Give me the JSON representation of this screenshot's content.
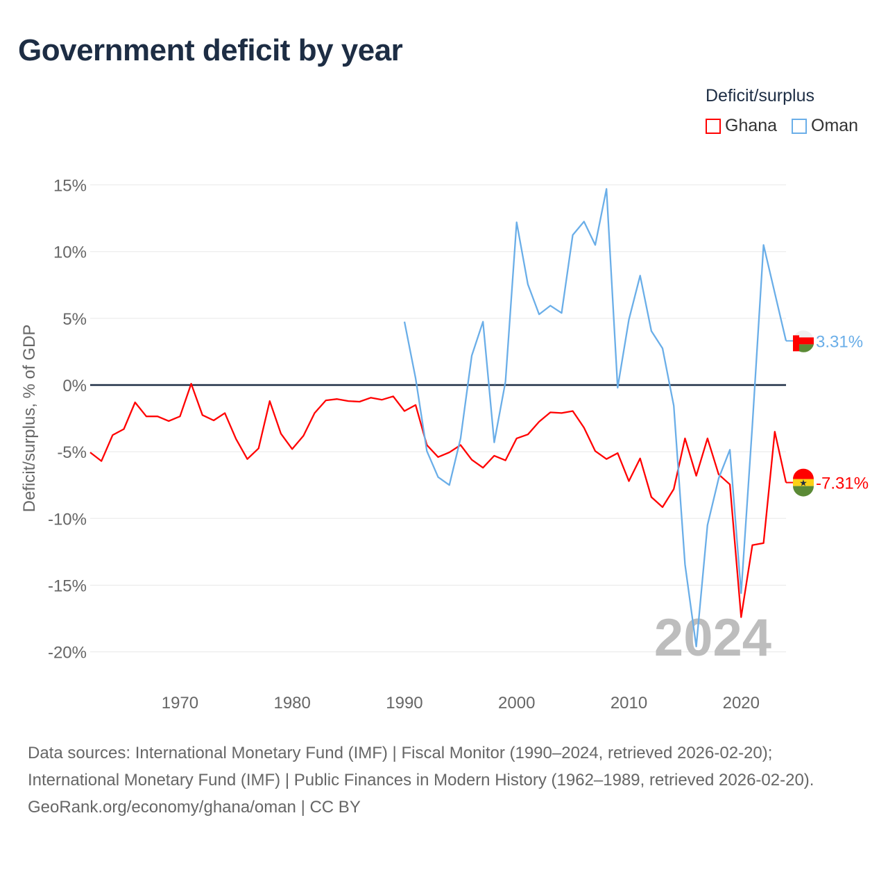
{
  "chart_data": {
    "type": "line",
    "title": "Government deficit by year",
    "ylabel": "Deficit/surplus, % of GDP",
    "xlabel": "",
    "ylim": [
      -20,
      15
    ],
    "xlim": [
      1962,
      2024
    ],
    "yticks": [
      15,
      10,
      5,
      0,
      -5,
      -10,
      -15,
      -20
    ],
    "ytick_labels": [
      "15%",
      "10%",
      "5%",
      "0%",
      "-5%",
      "-10%",
      "-15%",
      "-20%"
    ],
    "xticks": [
      1970,
      1980,
      1990,
      2000,
      2010,
      2020
    ],
    "xtick_labels": [
      "1970",
      "1980",
      "1990",
      "2000",
      "2010",
      "2020"
    ],
    "legend": {
      "title": "Deficit/surplus",
      "placement": "top-right"
    },
    "year_watermark": "2024",
    "series": [
      {
        "name": "Ghana",
        "color": "#ff0000",
        "end_label": "-7.31%",
        "start": 1962,
        "values": [
          -5.05,
          -5.7,
          -3.75,
          -3.3,
          -1.3,
          -2.35,
          -2.35,
          -2.7,
          -2.35,
          0.1,
          -2.25,
          -2.65,
          -2.1,
          -4.05,
          -5.55,
          -4.75,
          -1.2,
          -3.65,
          -4.8,
          -3.8,
          -2.1,
          -1.15,
          -1.05,
          -1.2,
          -1.25,
          -0.95,
          -1.1,
          -0.85,
          -1.95,
          -1.5,
          -4.5,
          -5.4,
          -5.05,
          -4.5,
          -5.6,
          -6.2,
          -5.3,
          -5.65,
          -4.0,
          -3.7,
          -2.75,
          -2.05,
          -2.1,
          -1.95,
          -3.2,
          -4.95,
          -5.55,
          -5.1,
          -7.2,
          -5.5,
          -8.4,
          -9.15,
          -7.8,
          -4.0,
          -6.8,
          -4.0,
          -6.7,
          -7.45,
          -17.4,
          -12.0,
          -11.85,
          -3.5,
          -7.31
        ]
      },
      {
        "name": "Oman",
        "color": "#6aaee8",
        "end_label": "3.31%",
        "start": 1990,
        "values": [
          4.75,
          0.5,
          -4.95,
          -6.9,
          -7.5,
          -4.0,
          2.2,
          4.75,
          -4.3,
          0.25,
          12.2,
          7.55,
          5.3,
          5.95,
          5.4,
          11.25,
          12.25,
          10.5,
          14.7,
          -0.2,
          4.9,
          8.2,
          4.05,
          2.75,
          -1.55,
          -13.45,
          -19.6,
          -10.5,
          -7.0,
          -4.85,
          -15.6,
          -3.0,
          10.5,
          6.9,
          3.31
        ]
      }
    ]
  },
  "sources": {
    "text": "Data sources: International Monetary Fund (IMF) | Fiscal Monitor (1990–2024, retrieved 2026-02-20); International Monetary Fund (IMF) | Public Finances in Modern History (1962–1989, retrieved 2026-02-20).",
    "credit": "GeoRank.org/economy/ghana/oman | CC BY"
  }
}
